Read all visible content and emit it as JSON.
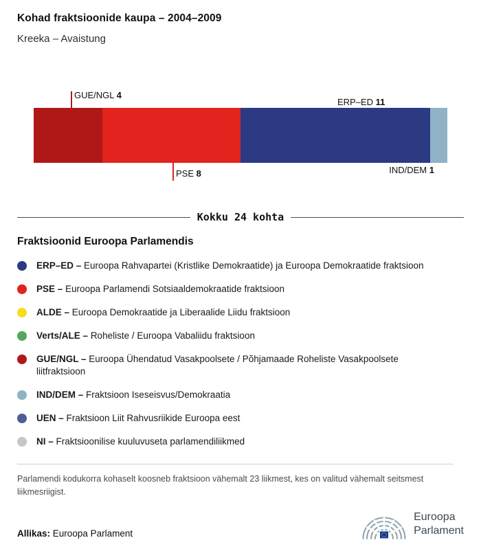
{
  "header": {
    "title": "Kohad fraktsioonide kaupa – 2004–2009",
    "subtitle": "Kreeka – Avaistung"
  },
  "chart_data": {
    "type": "bar",
    "stacked": true,
    "title": "Kohad fraktsioonide kaupa – 2004–2009",
    "total_seats": 24,
    "total_label": "Kokku 24 kohta",
    "segments": [
      {
        "name": "GUE/NGL",
        "value": 4,
        "color": "#ae1917",
        "label_position": "top"
      },
      {
        "name": "PSE",
        "value": 8,
        "color": "#e3231d",
        "label_position": "bottom"
      },
      {
        "name": "ERP–ED",
        "value": 11,
        "color": "#2c3a84",
        "label_position": "top"
      },
      {
        "name": "IND/DEM",
        "value": 1,
        "color": "#8fb2c6",
        "label_position": "bottom"
      }
    ]
  },
  "legend": {
    "heading": "Fraktsioonid Euroopa Parlamendis",
    "items": [
      {
        "abbr": "ERP–ED –",
        "desc": "Euroopa Rahvapartei (Kristlike Demokraatide) ja Euroopa Demokraatide fraktsioon",
        "color": "#2c3a84"
      },
      {
        "abbr": "PSE –",
        "desc": "Euroopa Parlamendi Sotsiaaldemokraatide fraktsioon",
        "color": "#e3231d"
      },
      {
        "abbr": "ALDE –",
        "desc": "Euroopa Demokraatide ja Liberaalide Liidu fraktsioon",
        "color": "#f6dd1e"
      },
      {
        "abbr": "Verts/ALE –",
        "desc": "Roheliste / Euroopa Vabaliidu fraktsioon",
        "color": "#55a75c"
      },
      {
        "abbr": "GUE/NGL –",
        "desc": "Euroopa Ühendatud Vasakpoolsete / Põhjamaade Roheliste Vasakpoolsete liitfraktsioon",
        "color": "#ae1917"
      },
      {
        "abbr": "IND/DEM –",
        "desc": "Fraktsioon Iseseisvus/Demokraatia",
        "color": "#8fb2c6"
      },
      {
        "abbr": "UEN –",
        "desc": "Fraktsioon Liit Rahvusriikide Euroopa eest",
        "color": "#4d5f94"
      },
      {
        "abbr": "NI –",
        "desc": "Fraktsioonilise kuuluvuseta parlamendiliikmed",
        "color": "#c6c6c6"
      }
    ]
  },
  "footnote": "Parlamendi kodukorra kohaselt koosneb fraktsioon vähemalt 23 liikmest, kes on valitud vähemalt seitsmest liikmesriigist.",
  "source": {
    "label": "Allikas:",
    "text": "Euroopa Parlament"
  },
  "logo": {
    "line1": "Euroopa",
    "line2": "Parlament"
  }
}
